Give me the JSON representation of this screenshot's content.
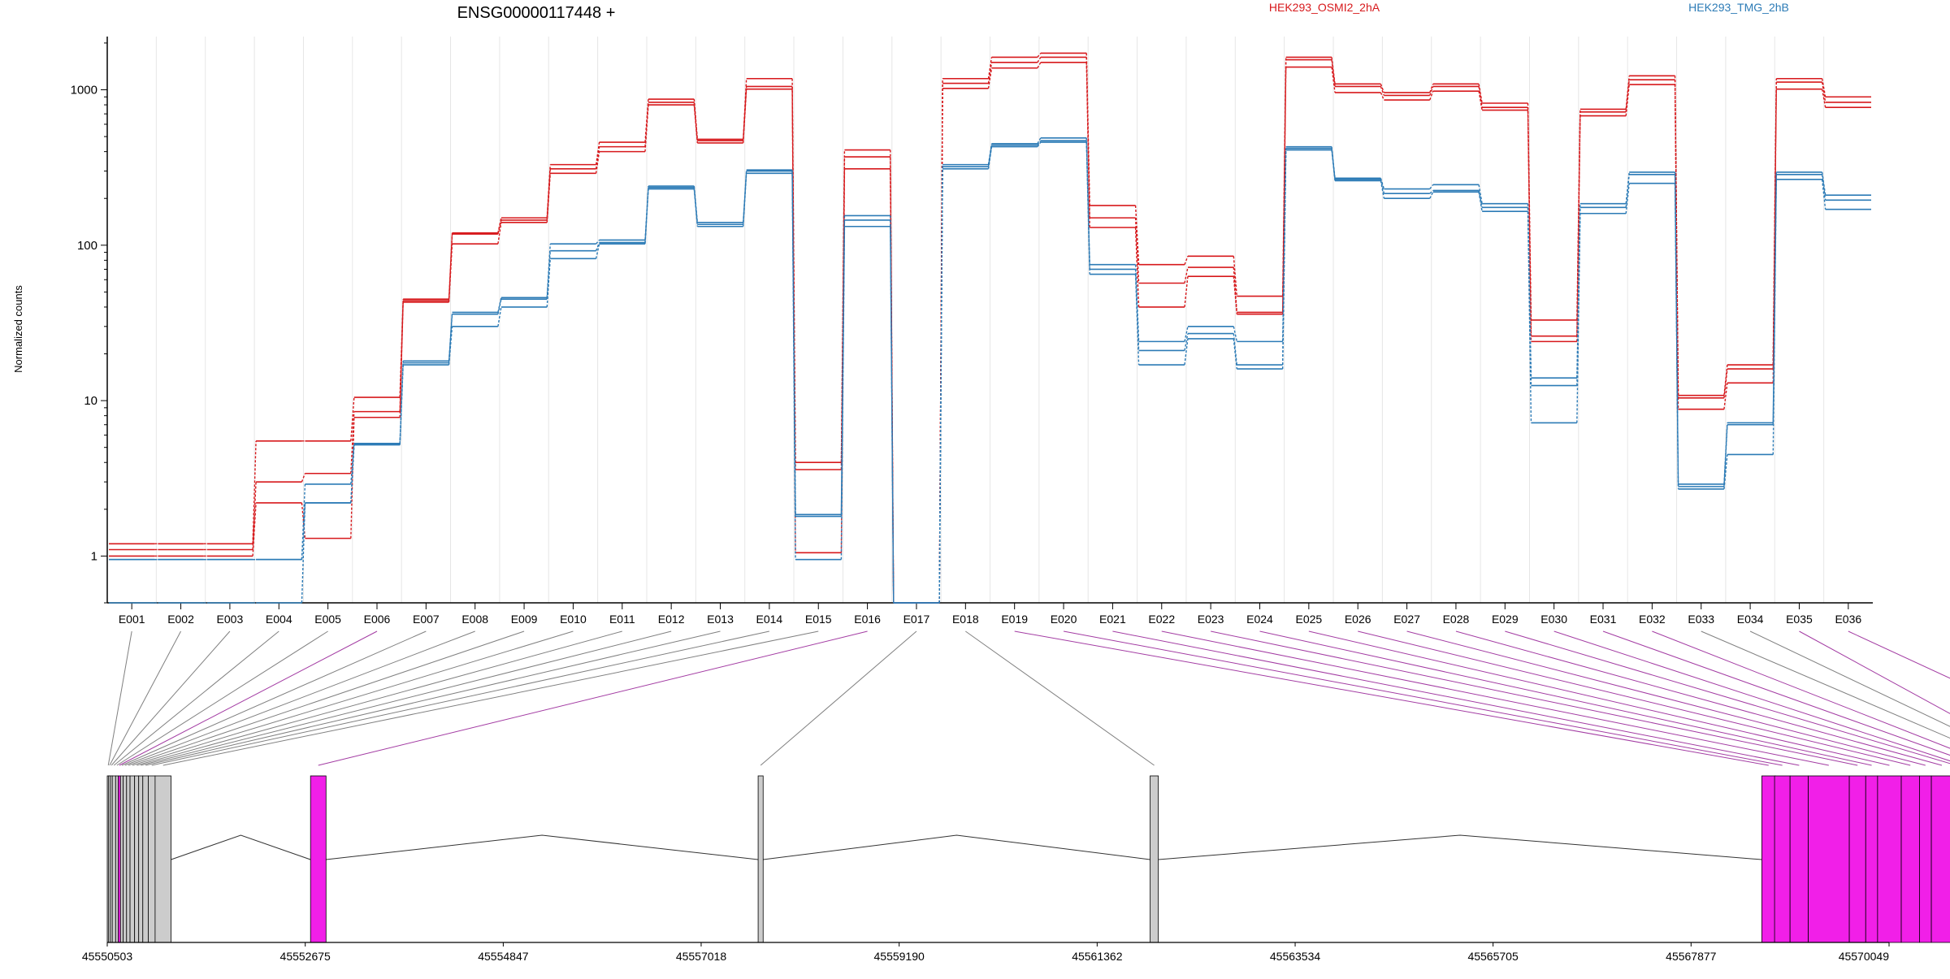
{
  "chart_data": {
    "type": "line",
    "title": "ENSG00000117448 +",
    "ylabel": "Normalized counts",
    "yscale": "log",
    "ylim": [
      0.5,
      2200
    ],
    "ytick_labels": [
      "1",
      "10",
      "100",
      "1000"
    ],
    "ytick_values": [
      1,
      10,
      100,
      1000
    ],
    "categories": [
      "E001",
      "E002",
      "E003",
      "E004",
      "E005",
      "E006",
      "E007",
      "E008",
      "E009",
      "E010",
      "E011",
      "E012",
      "E013",
      "E014",
      "E015",
      "E016",
      "E017",
      "E018",
      "E019",
      "E020",
      "E021",
      "E022",
      "E023",
      "E024",
      "E025",
      "E026",
      "E027",
      "E028",
      "E029",
      "E030",
      "E031",
      "E032",
      "E033",
      "E034",
      "E035",
      "E036"
    ],
    "legend": [
      {
        "label": "HEK293_OSMI2_2hA",
        "color": "#d7191c"
      },
      {
        "label": "HEK293_TMG_2hB",
        "color": "#2c7bb6"
      }
    ],
    "grid": "vertical",
    "series": [
      {
        "group": "HEK293_OSMI2_2hA",
        "color": "#d7191c",
        "values": [
          1.2,
          1.2,
          1.2,
          5.5,
          5.5,
          10.5,
          45,
          120,
          150,
          330,
          460,
          870,
          480,
          1180,
          4,
          410,
          0.5,
          1180,
          1620,
          1720,
          180,
          75,
          85,
          47,
          1620,
          1090,
          960,
          1090,
          820,
          33,
          750,
          1230,
          10.8,
          17,
          1180,
          900
        ]
      },
      {
        "group": "HEK293_OSMI2_2hA",
        "color": "#d7191c",
        "values": [
          1.1,
          1.1,
          1.1,
          3.0,
          3.4,
          8.5,
          44,
          118,
          145,
          310,
          430,
          830,
          470,
          1050,
          3.6,
          370,
          0.5,
          1100,
          1500,
          1620,
          150,
          57,
          72,
          37,
          1560,
          1050,
          920,
          1050,
          770,
          26,
          720,
          1160,
          10.4,
          16,
          1120,
          830
        ]
      },
      {
        "group": "HEK293_OSMI2_2hA",
        "color": "#d7191c",
        "values": [
          1.0,
          1.0,
          1.0,
          2.2,
          1.3,
          7.8,
          43,
          102,
          140,
          290,
          400,
          800,
          455,
          1010,
          1.05,
          310,
          0.5,
          1020,
          1380,
          1500,
          130,
          40,
          63,
          36,
          1400,
          960,
          860,
          980,
          740,
          24,
          680,
          1080,
          8.8,
          13,
          1010,
          770
        ]
      },
      {
        "group": "HEK293_TMG_2hB",
        "color": "#2c7bb6",
        "values": [
          0.95,
          0.95,
          0.95,
          0.95,
          2.9,
          5.3,
          18,
          37,
          46,
          102,
          108,
          240,
          140,
          305,
          1.85,
          155,
          0.5,
          330,
          450,
          490,
          75,
          24,
          30,
          24,
          430,
          270,
          230,
          245,
          185,
          14,
          185,
          295,
          2.9,
          7.2,
          295,
          210
        ]
      },
      {
        "group": "HEK293_TMG_2hB",
        "color": "#2c7bb6",
        "values": [
          0.95,
          0.95,
          0.95,
          0.95,
          2.2,
          5.2,
          17.5,
          36,
          45,
          92,
          104,
          235,
          136,
          300,
          1.8,
          145,
          0.5,
          320,
          440,
          470,
          70,
          21,
          27,
          17,
          420,
          265,
          215,
          225,
          175,
          12.5,
          175,
          285,
          2.8,
          7.0,
          285,
          195
        ]
      },
      {
        "group": "HEK293_TMG_2hB",
        "color": "#2c7bb6",
        "values": [
          0.5,
          0.5,
          0.5,
          0.5,
          2.2,
          5.2,
          17,
          30,
          40,
          82,
          102,
          230,
          132,
          290,
          0.95,
          132,
          0.5,
          310,
          430,
          460,
          65,
          17,
          25,
          16,
          410,
          260,
          200,
          220,
          165,
          7.2,
          160,
          250,
          2.7,
          4.5,
          265,
          170
        ]
      }
    ]
  },
  "gene_model": {
    "coordinate_labels": [
      "45550503",
      "45552675",
      "45554847",
      "45557018",
      "45559190",
      "45561362",
      "45563534",
      "45565705",
      "45567877",
      "45570049"
    ],
    "colors": {
      "exon_tested": "#cccccc",
      "exon_significant": "#f11fe8",
      "link_tested": "#808080",
      "link_significant": "#a33ca3"
    },
    "exon_status": [
      "tested",
      "tested",
      "tested",
      "tested",
      "tested",
      "significant",
      "tested",
      "tested",
      "tested",
      "tested",
      "tested",
      "tested",
      "tested",
      "tested",
      "tested",
      "significant",
      "tested",
      "tested",
      "significant",
      "significant",
      "significant",
      "significant",
      "significant",
      "significant",
      "significant",
      "significant",
      "significant",
      "significant",
      "significant",
      "significant",
      "significant",
      "significant",
      "tested",
      "tested",
      "significant",
      "significant"
    ]
  }
}
